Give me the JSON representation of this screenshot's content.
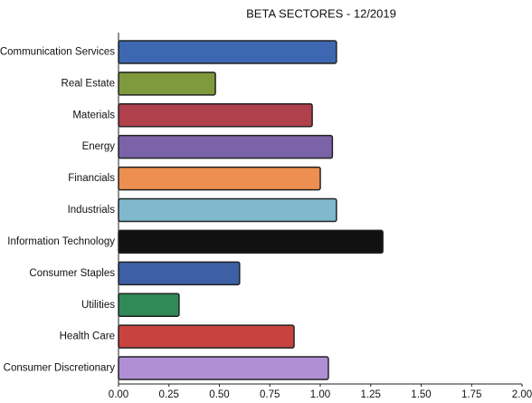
{
  "chart_data": {
    "type": "barh",
    "title": "BETA SECTORES - 12/2019",
    "categories": [
      "Communication Services",
      "Real Estate",
      "Materials",
      "Energy",
      "Financials",
      "Industrials",
      "Information Technology",
      "Consumer Staples",
      "Utilities",
      "Health Care",
      "Consumer Discretionary"
    ],
    "values": [
      1.08,
      0.48,
      0.96,
      1.06,
      1.0,
      1.08,
      1.31,
      0.6,
      0.3,
      0.87,
      1.04
    ],
    "colors": [
      "#3d67b1",
      "#7e9a3c",
      "#b0404b",
      "#7a63a8",
      "#ec8f50",
      "#80b8cd",
      "#111111",
      "#3d5fa5",
      "#2f8a58",
      "#c8433f",
      "#b18fd6"
    ],
    "xlim": [
      0,
      2
    ],
    "xticks": [
      {
        "value": 0,
        "label": "0.00"
      },
      {
        "value": 0.25,
        "label": "0.25"
      },
      {
        "value": 0.5,
        "label": "0.50"
      },
      {
        "value": 0.75,
        "label": "0.75"
      },
      {
        "value": 1,
        "label": "1.00"
      },
      {
        "value": 1.25,
        "label": "1.25"
      },
      {
        "value": 1.5,
        "label": "1.50"
      },
      {
        "value": 1.75,
        "label": "1.75"
      },
      {
        "value": 2,
        "label": "2.00"
      }
    ],
    "grid": false
  }
}
